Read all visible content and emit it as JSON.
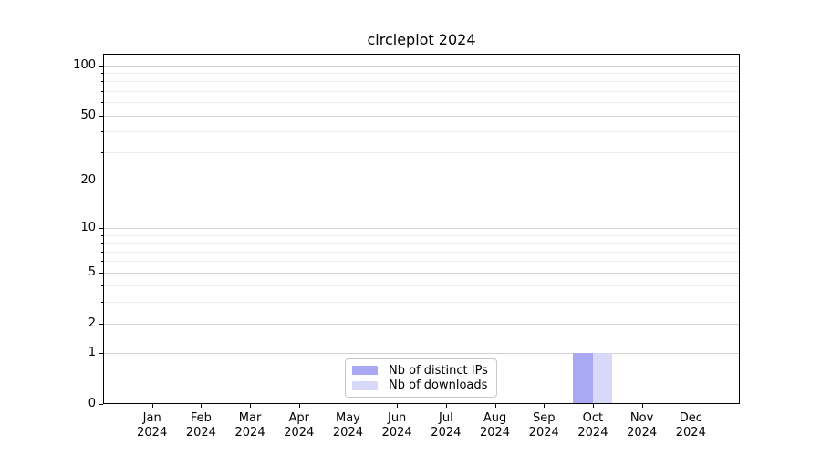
{
  "chart_data": {
    "type": "bar",
    "title": "circleplot 2024",
    "categories": [
      "Jan",
      "Feb",
      "Mar",
      "Apr",
      "May",
      "Jun",
      "Jul",
      "Aug",
      "Sep",
      "Oct",
      "Nov",
      "Dec"
    ],
    "category_year": "2024",
    "series": [
      {
        "name": "Nb of distinct IPs",
        "color": "#a8a8f5",
        "values": [
          0,
          0,
          0,
          0,
          0,
          0,
          0,
          0,
          0,
          1,
          0,
          0
        ]
      },
      {
        "name": "Nb of downloads",
        "color": "#d8d8f8",
        "values": [
          0,
          0,
          0,
          0,
          0,
          0,
          0,
          0,
          0,
          1,
          0,
          0
        ]
      }
    ],
    "xlabel": "",
    "ylabel": "",
    "yscale": "log1p",
    "ylim": [
      0,
      117
    ],
    "yticks": [
      0,
      1,
      2,
      5,
      10,
      20,
      50,
      100
    ],
    "yticks_minor": [
      3,
      4,
      6,
      7,
      8,
      9,
      30,
      40,
      60,
      70,
      80,
      90
    ],
    "grid": "horizontal-major-and-minor",
    "legend_position": "lower-center",
    "colors": {
      "grid_major": "#d2d2d2",
      "grid_minor": "#ececec",
      "axis": "#000000",
      "text": "#000000",
      "legend_border": "#c9c9c9",
      "background": "#ffffff"
    }
  }
}
